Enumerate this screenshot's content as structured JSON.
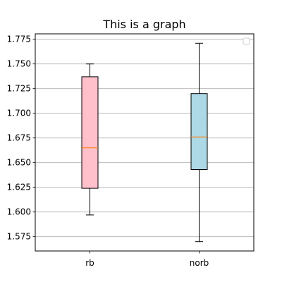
{
  "chart_data": {
    "type": "box",
    "title": "This is a graph",
    "xlabel": "",
    "ylabel": "",
    "categories": [
      "rb",
      "norb"
    ],
    "boxes": [
      {
        "label": "rb",
        "whisker_low": 1.597,
        "q1": 1.624,
        "median": 1.665,
        "q3": 1.737,
        "whisker_high": 1.75,
        "color": "#ffc0cb"
      },
      {
        "label": "norb",
        "whisker_low": 1.57,
        "q1": 1.643,
        "median": 1.676,
        "q3": 1.72,
        "whisker_high": 1.771,
        "color": "#add8e6"
      }
    ],
    "ylim": [
      1.5605,
      1.7805
    ],
    "yticks": [
      1.575,
      1.6,
      1.625,
      1.65,
      1.675,
      1.7,
      1.725,
      1.75,
      1.775
    ],
    "ytick_labels": [
      "1.575",
      "1.600",
      "1.625",
      "1.650",
      "1.675",
      "1.700",
      "1.725",
      "1.750",
      "1.775"
    ],
    "grid": "y",
    "legend": "upper right, empty",
    "median_color": "#ff7f0e"
  }
}
